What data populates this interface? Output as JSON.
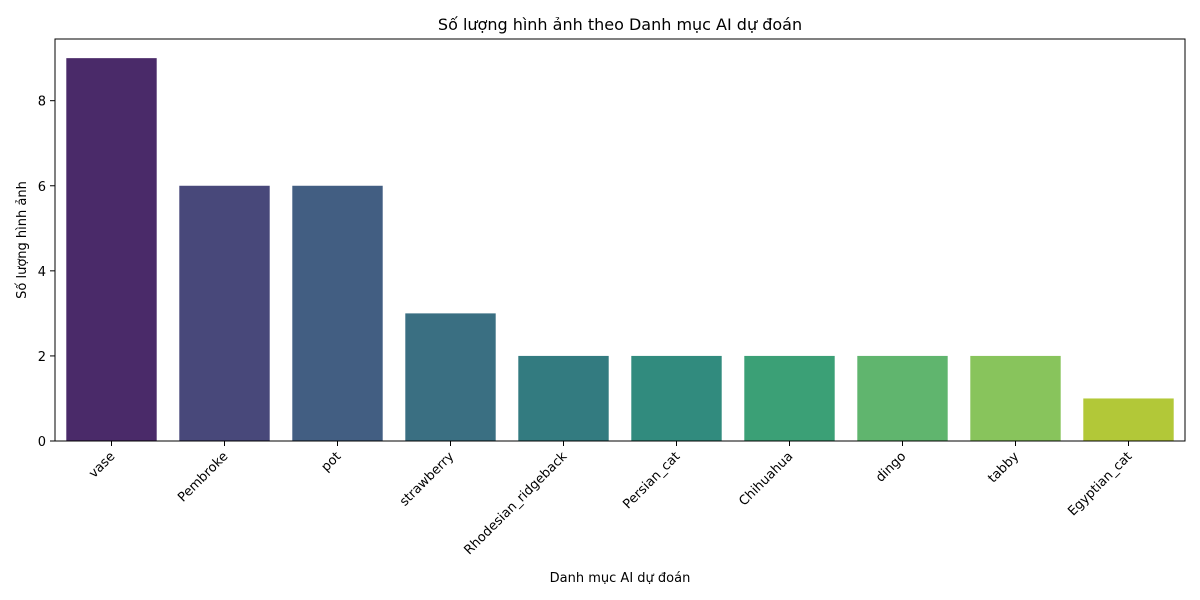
{
  "chart_data": {
    "type": "bar",
    "title": "Số lượng hình ảnh theo Danh mục AI dự đoán",
    "xlabel": "Danh mục AI dự đoán",
    "ylabel": "Số lượng hình ảnh",
    "categories": [
      "vase",
      "Pembroke",
      "pot",
      "strawberry",
      "Rhodesian_ridgeback",
      "Persian_cat",
      "Chihuahua",
      "dingo",
      "tabby",
      "Egyptian_cat"
    ],
    "values": [
      9,
      6,
      6,
      3,
      2,
      2,
      2,
      2,
      2,
      1
    ],
    "colors": [
      "#4a2a69",
      "#48487a",
      "#425e82",
      "#3a6f82",
      "#337b80",
      "#318b7e",
      "#3ba076",
      "#60b56e",
      "#88c45c",
      "#b2c838"
    ],
    "ylim": [
      0,
      9.45
    ],
    "yticks": [
      0,
      2,
      4,
      6,
      8
    ],
    "grid": false
  }
}
